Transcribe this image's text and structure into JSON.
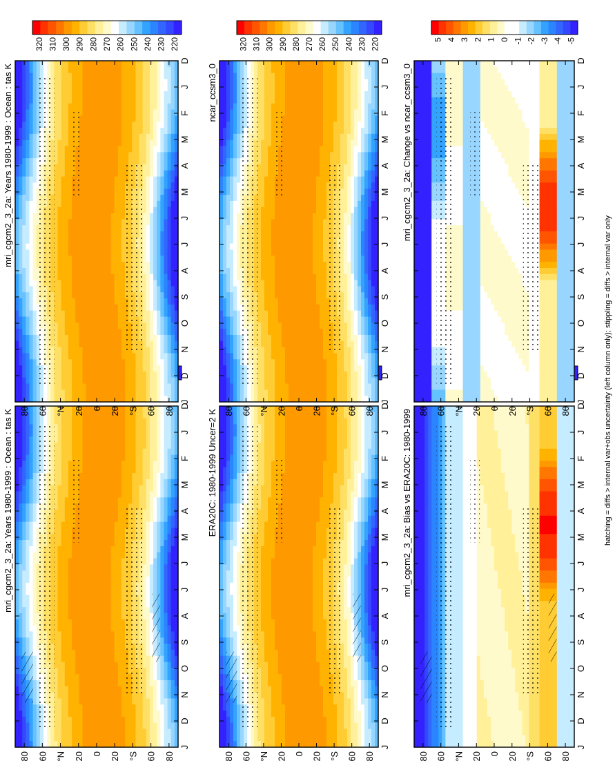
{
  "figure": {
    "footnote": "hatching = diffs > internal var+obs uncertainty (left column only); stippling = diffs > internal var only"
  },
  "palettes": {
    "abs": [
      "#ff0000",
      "#ff3300",
      "#ff5500",
      "#ff7700",
      "#ff9900",
      "#ffb200",
      "#ffcc33",
      "#ffe066",
      "#fff099",
      "#fffacc",
      "#ffffff",
      "#ffffff",
      "#c6ecff",
      "#99d6ff",
      "#66c2ff",
      "#33a3ff",
      "#2b85ff",
      "#3366ff",
      "#3348ff",
      "#3322ff"
    ],
    "diff": [
      "#ff0000",
      "#ff3300",
      "#ff5500",
      "#ff7700",
      "#ff9900",
      "#ffb200",
      "#ffcc33",
      "#ffe066",
      "#fff099",
      "#fffacc",
      "#ffffff",
      "#ffffff",
      "#c6ecff",
      "#99d6ff",
      "#66c2ff",
      "#33a3ff",
      "#2b85ff",
      "#3366ff",
      "#3348ff",
      "#3322ff"
    ]
  },
  "chart_data": [
    {
      "type": "heatmap",
      "title": "mri_cgcm2_3_2a: Years 1980-1999 : Ocean : tas K",
      "months": [
        "D",
        "J",
        "F",
        "M",
        "A",
        "M",
        "J",
        "J",
        "A",
        "S",
        "O",
        "N",
        "D",
        "J"
      ],
      "lat_ticks": [
        "80",
        "60",
        "°N",
        "20",
        "0",
        "20",
        "°S",
        "60",
        "80"
      ],
      "lat_range": [
        -90,
        90
      ],
      "colorbar": [
        "320",
        "310",
        "300",
        "290",
        "280",
        "270",
        "260",
        "250",
        "240",
        "230",
        "220"
      ],
      "colorbar_type": "abs",
      "hatching": true,
      "stippling": true,
      "panel": "middle-left"
    },
    {
      "type": "heatmap",
      "title": "mri_cgcm2_3_2a: Years 1980-1999 : Ocean : tas K",
      "months": [
        "D",
        "J",
        "F",
        "M",
        "A",
        "M",
        "J",
        "J",
        "A",
        "S",
        "O",
        "N",
        "D",
        "J"
      ],
      "lat_ticks": [
        "80",
        "60",
        "°N",
        "20",
        "0",
        "20",
        "°S",
        "60",
        "80"
      ],
      "lat_range": [
        -90,
        90
      ],
      "colorbar": [
        "320",
        "310",
        "300",
        "290",
        "280",
        "270",
        "260",
        "250",
        "240",
        "230",
        "220"
      ],
      "colorbar_type": "abs",
      "hatching": false,
      "stippling": true,
      "panel": "top-right"
    },
    {
      "type": "heatmap",
      "title": "ERA20C: 1980-1999 Uncer=2 K",
      "months": [
        "D",
        "J",
        "F",
        "M",
        "A",
        "M",
        "J",
        "J",
        "A",
        "S",
        "O",
        "N",
        "D",
        "J"
      ],
      "lat_ticks": [
        "80",
        "60",
        "°N",
        "20",
        "0",
        "20",
        "°S",
        "60",
        "80"
      ],
      "lat_range": [
        -90,
        90
      ],
      "colorbar": [
        "320",
        "310",
        "300",
        "290",
        "280",
        "270",
        "260",
        "250",
        "240",
        "230",
        "220"
      ],
      "colorbar_type": "abs",
      "hatching": true,
      "stippling": true,
      "panel": "middle-left-2"
    },
    {
      "type": "heatmap",
      "title": "ncar_ccsm3_0",
      "months": [
        "D",
        "J",
        "F",
        "M",
        "A",
        "M",
        "J",
        "J",
        "A",
        "S",
        "O",
        "N",
        "D",
        "J"
      ],
      "lat_ticks": [
        "80",
        "60",
        "°N",
        "20",
        "0",
        "20",
        "°S",
        "60",
        "80"
      ],
      "lat_range": [
        -90,
        90
      ],
      "colorbar": [
        "320",
        "310",
        "300",
        "290",
        "280",
        "270",
        "260",
        "250",
        "240",
        "230",
        "220"
      ],
      "colorbar_type": "abs",
      "hatching": false,
      "stippling": true,
      "panel": "middle-right"
    },
    {
      "type": "heatmap",
      "title": "mri_cgcm2_3_2a: Bias vs ERA20C: 1980-1999",
      "months": [
        "D",
        "J",
        "F",
        "M",
        "A",
        "M",
        "J",
        "J",
        "A",
        "S",
        "O",
        "N",
        "D",
        "J"
      ],
      "lat_ticks": [
        "80",
        "60",
        "°N",
        "20",
        "0",
        "20",
        "°S",
        "60",
        "80"
      ],
      "lat_range": [
        -90,
        90
      ],
      "colorbar": [
        "5",
        "4",
        "3",
        "2",
        "1",
        "0",
        "-1",
        "-2",
        "-3",
        "-4",
        "-5"
      ],
      "colorbar_type": "diff",
      "hatching": true,
      "stippling": true,
      "panel": "bottom-left"
    },
    {
      "type": "heatmap",
      "title": "mri_cgcm2_3_2a: Change vs ncar_ccsm3_0",
      "months": [
        "D",
        "J",
        "F",
        "M",
        "A",
        "M",
        "J",
        "J",
        "A",
        "S",
        "O",
        "N",
        "D",
        "J"
      ],
      "lat_ticks": [
        "80",
        "60",
        "°N",
        "20",
        "0",
        "20",
        "°S",
        "60",
        "80"
      ],
      "lat_range": [
        -90,
        90
      ],
      "colorbar": [
        "5",
        "4",
        "3",
        "2",
        "1",
        "0",
        "-1",
        "-2",
        "-3",
        "-4",
        "-5"
      ],
      "colorbar_type": "diff",
      "hatching": false,
      "stippling": true,
      "panel": "bottom-right"
    }
  ]
}
